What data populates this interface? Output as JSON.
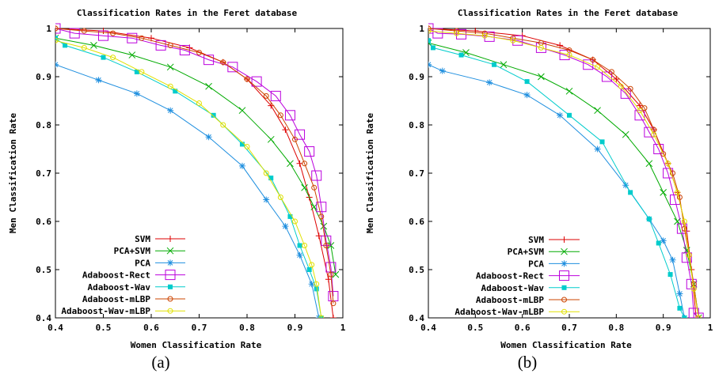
{
  "captions": [
    "(a)",
    "(b)"
  ],
  "chart_data": [
    {
      "type": "line",
      "title": "Classification Rates in the Feret database",
      "xlabel": "Women Classification Rate",
      "ylabel": "Men Classification Rate",
      "xlim": [
        0.4,
        1.0
      ],
      "ylim": [
        0.4,
        1.0
      ],
      "xticks": [
        "0.4",
        "0.5",
        "0.6",
        "0.7",
        "0.8",
        "0.9",
        "1"
      ],
      "yticks": [
        "0.4",
        "0.5",
        "0.6",
        "0.7",
        "0.8",
        "0.9",
        "1"
      ],
      "grid": false,
      "legend_position": "bottom-left",
      "series": [
        {
          "name": "SVM",
          "color": "#dd0000",
          "marker": "plus",
          "x": [
            0.4,
            0.5,
            0.6,
            0.68,
            0.75,
            0.8,
            0.85,
            0.88,
            0.91,
            0.93,
            0.95,
            0.97,
            0.98
          ],
          "y": [
            1.0,
            0.995,
            0.98,
            0.96,
            0.93,
            0.895,
            0.84,
            0.79,
            0.72,
            0.65,
            0.57,
            0.48,
            0.4
          ]
        },
        {
          "name": "PCA+SVM",
          "color": "#00aa00",
          "marker": "cross",
          "x": [
            0.4,
            0.48,
            0.56,
            0.64,
            0.72,
            0.79,
            0.85,
            0.89,
            0.92,
            0.94,
            0.96,
            0.975,
            0.985
          ],
          "y": [
            0.98,
            0.965,
            0.945,
            0.92,
            0.88,
            0.83,
            0.77,
            0.72,
            0.67,
            0.63,
            0.59,
            0.55,
            0.49
          ]
        },
        {
          "name": "PCA",
          "color": "#1f8fdf",
          "marker": "star",
          "x": [
            0.4,
            0.49,
            0.57,
            0.64,
            0.72,
            0.79,
            0.84,
            0.88,
            0.91,
            0.935,
            0.95
          ],
          "y": [
            0.925,
            0.893,
            0.865,
            0.83,
            0.775,
            0.715,
            0.645,
            0.59,
            0.53,
            0.47,
            0.4
          ]
        },
        {
          "name": "Adaboost-Rect",
          "color": "#bb00dd",
          "marker": "square",
          "x": [
            0.4,
            0.44,
            0.5,
            0.56,
            0.62,
            0.67,
            0.72,
            0.77,
            0.82,
            0.86,
            0.89,
            0.91,
            0.93,
            0.945,
            0.955,
            0.965,
            0.975,
            0.98
          ],
          "y": [
            1.0,
            0.99,
            0.985,
            0.98,
            0.965,
            0.955,
            0.935,
            0.92,
            0.89,
            0.86,
            0.82,
            0.78,
            0.745,
            0.695,
            0.63,
            0.56,
            0.505,
            0.445
          ]
        },
        {
          "name": "Adaboost-Wav",
          "color": "#00cccc",
          "marker": "fsquare",
          "x": [
            0.4,
            0.42,
            0.5,
            0.57,
            0.65,
            0.73,
            0.79,
            0.85,
            0.89,
            0.91,
            0.93,
            0.945,
            0.955
          ],
          "y": [
            0.98,
            0.965,
            0.94,
            0.91,
            0.87,
            0.82,
            0.76,
            0.69,
            0.61,
            0.55,
            0.5,
            0.46,
            0.4
          ]
        },
        {
          "name": "Adaboost-mLBP",
          "color": "#cc4400",
          "marker": "circle",
          "x": [
            0.4,
            0.46,
            0.52,
            0.58,
            0.64,
            0.7,
            0.75,
            0.8,
            0.84,
            0.87,
            0.9,
            0.92,
            0.94,
            0.955,
            0.965,
            0.975,
            0.98
          ],
          "y": [
            1.0,
            0.995,
            0.99,
            0.98,
            0.965,
            0.95,
            0.93,
            0.895,
            0.86,
            0.82,
            0.77,
            0.72,
            0.67,
            0.61,
            0.55,
            0.49,
            0.43
          ]
        },
        {
          "name": "Adaboost-Wav-mLBP",
          "color": "#e0e000",
          "marker": "circle",
          "x": [
            0.4,
            0.46,
            0.52,
            0.58,
            0.64,
            0.7,
            0.75,
            0.8,
            0.84,
            0.87,
            0.9,
            0.92,
            0.935,
            0.945,
            0.955
          ],
          "y": [
            0.975,
            0.96,
            0.94,
            0.91,
            0.88,
            0.845,
            0.8,
            0.755,
            0.7,
            0.65,
            0.6,
            0.55,
            0.51,
            0.47,
            0.4
          ]
        }
      ]
    },
    {
      "type": "line",
      "title": "Classification Rates in the Feret database",
      "xlabel": "Women Classification Rate",
      "ylabel": "Men Classification Rate",
      "xlim": [
        0.4,
        1.0
      ],
      "ylim": [
        0.4,
        1.0
      ],
      "xticks": [
        "0.4",
        "0.5",
        "0.6",
        "0.7",
        "0.8",
        "0.9",
        "1"
      ],
      "yticks": [
        "0.4",
        "0.5",
        "0.6",
        "0.7",
        "0.8",
        "0.9",
        "1"
      ],
      "grid": false,
      "legend_position": "bottom-left",
      "series": [
        {
          "name": "SVM",
          "color": "#dd0000",
          "marker": "plus",
          "x": [
            0.4,
            0.5,
            0.6,
            0.68,
            0.75,
            0.8,
            0.85,
            0.88,
            0.91,
            0.93,
            0.95,
            0.96,
            0.97
          ],
          "y": [
            1.0,
            0.995,
            0.985,
            0.965,
            0.935,
            0.895,
            0.84,
            0.79,
            0.72,
            0.66,
            0.58,
            0.5,
            0.4
          ]
        },
        {
          "name": "PCA+SVM",
          "color": "#00aa00",
          "marker": "cross",
          "x": [
            0.4,
            0.48,
            0.56,
            0.64,
            0.7,
            0.76,
            0.82,
            0.87,
            0.9,
            0.93,
            0.95,
            0.965,
            0.975
          ],
          "y": [
            0.97,
            0.95,
            0.925,
            0.9,
            0.87,
            0.83,
            0.78,
            0.72,
            0.66,
            0.6,
            0.54,
            0.47,
            0.4
          ]
        },
        {
          "name": "PCA",
          "color": "#1f8fdf",
          "marker": "star",
          "x": [
            0.4,
            0.43,
            0.53,
            0.61,
            0.68,
            0.76,
            0.82,
            0.87,
            0.9,
            0.92,
            0.935,
            0.945
          ],
          "y": [
            0.925,
            0.912,
            0.888,
            0.862,
            0.82,
            0.75,
            0.675,
            0.605,
            0.56,
            0.52,
            0.45,
            0.4
          ]
        },
        {
          "name": "Adaboost-Rect",
          "color": "#bb00dd",
          "marker": "square",
          "x": [
            0.4,
            0.42,
            0.47,
            0.53,
            0.59,
            0.64,
            0.69,
            0.74,
            0.78,
            0.82,
            0.85,
            0.87,
            0.89,
            0.91,
            0.925,
            0.94,
            0.95,
            0.96,
            0.965,
            0.975
          ],
          "y": [
            1.0,
            0.99,
            0.988,
            0.983,
            0.975,
            0.96,
            0.945,
            0.925,
            0.9,
            0.865,
            0.82,
            0.785,
            0.75,
            0.7,
            0.645,
            0.585,
            0.525,
            0.47,
            0.41,
            0.4
          ]
        },
        {
          "name": "Adaboost-Wav",
          "color": "#00cccc",
          "marker": "fsquare",
          "x": [
            0.4,
            0.41,
            0.47,
            0.54,
            0.61,
            0.7,
            0.77,
            0.83,
            0.87,
            0.89,
            0.915,
            0.935,
            0.945
          ],
          "y": [
            0.975,
            0.96,
            0.945,
            0.925,
            0.89,
            0.82,
            0.765,
            0.66,
            0.605,
            0.555,
            0.49,
            0.42,
            0.4
          ]
        },
        {
          "name": "Adaboost-mLBP",
          "color": "#cc4400",
          "marker": "circle",
          "x": [
            0.4,
            0.46,
            0.52,
            0.58,
            0.64,
            0.7,
            0.75,
            0.79,
            0.83,
            0.86,
            0.88,
            0.9,
            0.92,
            0.935,
            0.945,
            0.955,
            0.965,
            0.975
          ],
          "y": [
            1.0,
            0.995,
            0.99,
            0.98,
            0.97,
            0.955,
            0.935,
            0.91,
            0.875,
            0.835,
            0.79,
            0.74,
            0.7,
            0.65,
            0.585,
            0.53,
            0.47,
            0.4
          ]
        },
        {
          "name": "Adaboost-Wav-mLBP",
          "color": "#e0e000",
          "marker": "circle",
          "x": [
            0.4,
            0.46,
            0.52,
            0.58,
            0.64,
            0.7,
            0.76,
            0.81,
            0.85,
            0.88,
            0.91,
            0.93,
            0.945,
            0.955,
            0.965,
            0.975
          ],
          "y": [
            0.995,
            0.99,
            0.985,
            0.975,
            0.96,
            0.945,
            0.92,
            0.88,
            0.83,
            0.78,
            0.72,
            0.66,
            0.6,
            0.53,
            0.46,
            0.4
          ]
        }
      ]
    }
  ]
}
